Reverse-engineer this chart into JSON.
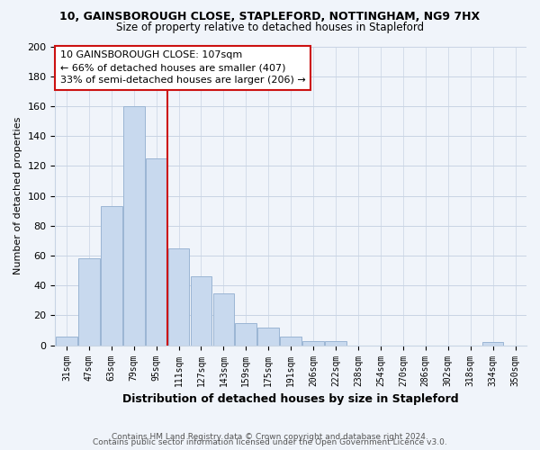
{
  "title": "10, GAINSBOROUGH CLOSE, STAPLEFORD, NOTTINGHAM, NG9 7HX",
  "subtitle": "Size of property relative to detached houses in Stapleford",
  "xlabel": "Distribution of detached houses by size in Stapleford",
  "ylabel": "Number of detached properties",
  "bar_labels": [
    "31sqm",
    "47sqm",
    "63sqm",
    "79sqm",
    "95sqm",
    "111sqm",
    "127sqm",
    "143sqm",
    "159sqm",
    "175sqm",
    "191sqm",
    "206sqm",
    "222sqm",
    "238sqm",
    "254sqm",
    "270sqm",
    "286sqm",
    "302sqm",
    "318sqm",
    "334sqm",
    "350sqm"
  ],
  "bar_values": [
    6,
    58,
    93,
    160,
    125,
    65,
    46,
    35,
    15,
    12,
    6,
    3,
    3,
    0,
    0,
    0,
    0,
    0,
    0,
    2,
    0
  ],
  "bar_color": "#c8d9ee",
  "bar_edge_color": "#9ab5d4",
  "highlight_line_color": "#cc1111",
  "annotation_title": "10 GAINSBOROUGH CLOSE: 107sqm",
  "annotation_line1": "← 66% of detached houses are smaller (407)",
  "annotation_line2": "33% of semi-detached houses are larger (206) →",
  "ylim": [
    0,
    200
  ],
  "yticks": [
    0,
    20,
    40,
    60,
    80,
    100,
    120,
    140,
    160,
    180,
    200
  ],
  "footer1": "Contains HM Land Registry data © Crown copyright and database right 2024.",
  "footer2": "Contains public sector information licensed under the Open Government Licence v3.0.",
  "bg_color": "#f0f4fa",
  "grid_color": "#c8d4e4"
}
